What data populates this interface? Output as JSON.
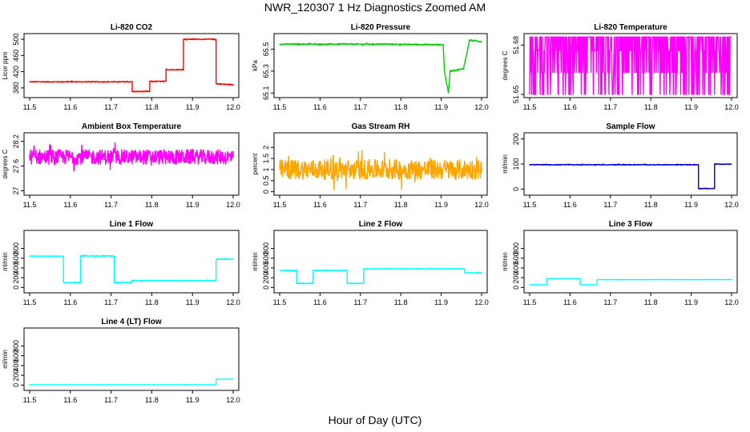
{
  "page": {
    "title": "NWR_120307  1 Hz Diagnostics Zoomed AM",
    "x_axis_title": "Hour of Day (UTC)"
  },
  "chart_data": [
    {
      "id": "li820-co2",
      "type": "line",
      "title": "Li-820 CO2",
      "ylabel": "Licor ppm",
      "color": "#ff0000",
      "xlim": [
        11.5,
        12.0
      ],
      "ylim": [
        362,
        508
      ],
      "xticks": [
        "11.5",
        "11.6",
        "11.7",
        "11.8",
        "11.9",
        "12.0"
      ],
      "yticks": [
        380,
        420,
        460,
        500
      ],
      "series": [
        {
          "name": "CO2",
          "noise": 1.2,
          "x": [
            11.5,
            11.752,
            11.752,
            11.795,
            11.795,
            11.835,
            11.835,
            11.878,
            11.878,
            11.958,
            11.958,
            12.0
          ],
          "y": [
            395,
            395,
            371,
            371,
            396,
            396,
            425,
            425,
            500,
            500,
            390,
            388
          ]
        }
      ]
    },
    {
      "id": "li820-pressure",
      "type": "line",
      "title": "Li-820 Pressure",
      "ylabel": "kPa",
      "color": "#00cc00",
      "xlim": [
        11.5,
        12.0
      ],
      "ylim": [
        65.08,
        65.62
      ],
      "xticks": [
        "11.5",
        "11.6",
        "11.7",
        "11.8",
        "11.9",
        "12.0"
      ],
      "yticks": [
        65.1,
        65.3,
        65.5
      ],
      "series": [
        {
          "name": "Pressure",
          "noise": 0.006,
          "x": [
            11.5,
            11.75,
            11.905,
            11.908,
            11.918,
            11.922,
            11.955,
            11.96,
            11.97,
            12.0
          ],
          "y": [
            65.545,
            65.545,
            65.54,
            65.3,
            65.1,
            65.3,
            65.32,
            65.4,
            65.58,
            65.57
          ]
        }
      ]
    },
    {
      "id": "li820-temperature",
      "type": "line",
      "title": "Li-820 Temperature",
      "ylabel": "degrees C",
      "color": "#ff00ff",
      "xlim": [
        11.5,
        12.0
      ],
      "ylim": [
        51.6495,
        51.6855
      ],
      "xticks": [
        "11.5",
        "11.6",
        "11.7",
        "11.8",
        "11.9",
        "12.0"
      ],
      "yticks": [
        51.65,
        51.68
      ],
      "series": [
        {
          "name": "Temperature",
          "pattern": "quantized-toggle",
          "levels": [
            51.65,
            51.6633,
            51.6766,
            51.6849
          ],
          "x": [
            11.5,
            12.0
          ],
          "y": [
            51.6766,
            51.6766
          ]
        }
      ]
    },
    {
      "id": "ambient-box-temperature",
      "type": "line",
      "title": "Ambient Box Temperature",
      "ylabel": "degrees C",
      "color": "#ff00ff",
      "xlim": [
        11.5,
        12.0
      ],
      "ylim": [
        26.95,
        28.35
      ],
      "xticks": [
        "11.5",
        "11.6",
        "11.7",
        "11.8",
        "11.9",
        "12.0"
      ],
      "yticks": [
        27.0,
        27.6,
        28.2
      ],
      "series": [
        {
          "name": "Box Temp",
          "noise": 0.18,
          "x": [
            11.5,
            12.0
          ],
          "y": [
            27.82,
            27.82
          ]
        }
      ]
    },
    {
      "id": "gas-stream-rh",
      "type": "line",
      "title": "Gas Stream RH",
      "ylabel": "percent",
      "color": "#ffa500",
      "xlim": [
        11.5,
        12.0
      ],
      "ylim": [
        -0.05,
        2.55
      ],
      "xticks": [
        "11.5",
        "11.6",
        "11.7",
        "11.8",
        "11.9",
        "12.0"
      ],
      "yticks": [
        0.0,
        0.5,
        1.0,
        1.5,
        2.0
      ],
      "series": [
        {
          "name": "RH",
          "noise": 0.45,
          "x": [
            11.5,
            12.0
          ],
          "y": [
            1.0,
            1.0
          ]
        }
      ]
    },
    {
      "id": "sample-flow",
      "type": "line",
      "title": "Sample Flow",
      "ylabel": "ml/min",
      "color": "#0000cc",
      "xlim": [
        11.5,
        12.0
      ],
      "ylim": [
        -15,
        215
      ],
      "xticks": [
        "11.5",
        "11.6",
        "11.7",
        "11.8",
        "11.9",
        "12.0"
      ],
      "yticks": [
        0,
        100,
        200
      ],
      "series": [
        {
          "name": "Sample Flow",
          "noise": 1.5,
          "x": [
            11.5,
            11.918,
            11.918,
            11.958,
            11.958,
            12.0
          ],
          "y": [
            97,
            97,
            2,
            2,
            100,
            99
          ]
        }
      ]
    },
    {
      "id": "line1-flow",
      "type": "line",
      "title": "Line 1 Flow",
      "ylabel": "ml/min",
      "color": "#00ffff",
      "xlim": [
        11.5,
        12.0
      ],
      "ylim": [
        -60,
        1120
      ],
      "xticks": [
        "11.5",
        "11.6",
        "11.7",
        "11.8",
        "11.9",
        "12.0"
      ],
      "yticks": [
        0,
        200,
        400,
        600,
        800
      ],
      "series": [
        {
          "name": "Line 1",
          "noise": 10,
          "x": [
            11.5,
            11.583,
            11.583,
            11.625,
            11.625,
            11.708,
            11.708,
            11.75,
            11.75,
            11.958,
            11.958,
            12.0
          ],
          "y": [
            640,
            640,
            100,
            100,
            650,
            640,
            100,
            100,
            140,
            140,
            580,
            580
          ]
        }
      ]
    },
    {
      "id": "line2-flow",
      "type": "line",
      "title": "Line 2 Flow",
      "ylabel": "ml/min",
      "color": "#00ffff",
      "xlim": [
        11.5,
        12.0
      ],
      "ylim": [
        -60,
        1120
      ],
      "xticks": [
        "11.5",
        "11.6",
        "11.7",
        "11.8",
        "11.9",
        "12.0"
      ],
      "yticks": [
        0,
        200,
        400,
        600,
        800
      ],
      "series": [
        {
          "name": "Line 2",
          "noise": 8,
          "x": [
            11.5,
            11.542,
            11.542,
            11.583,
            11.583,
            11.667,
            11.667,
            11.708,
            11.708,
            11.958,
            11.958,
            12.0
          ],
          "y": [
            350,
            350,
            85,
            85,
            350,
            350,
            85,
            85,
            380,
            380,
            300,
            300
          ]
        }
      ]
    },
    {
      "id": "line3-flow",
      "type": "line",
      "title": "Line 3 Flow",
      "ylabel": "ml/min",
      "color": "#00ffff",
      "xlim": [
        11.5,
        12.0
      ],
      "ylim": [
        -60,
        1120
      ],
      "xticks": [
        "11.5",
        "11.6",
        "11.7",
        "11.8",
        "11.9",
        "12.0"
      ],
      "yticks": [
        0,
        200,
        400,
        600,
        800
      ],
      "series": [
        {
          "name": "Line 3",
          "noise": 3,
          "x": [
            11.5,
            11.542,
            11.542,
            11.625,
            11.625,
            11.667,
            11.667,
            12.0
          ],
          "y": [
            55,
            55,
            180,
            180,
            55,
            55,
            160,
            160
          ]
        }
      ]
    },
    {
      "id": "line4-flow",
      "type": "line",
      "title": "Line 4 (LT) Flow",
      "ylabel": "ml/min",
      "color": "#00ffff",
      "xlim": [
        11.5,
        12.0
      ],
      "ylim": [
        -60,
        1120
      ],
      "xticks": [
        "11.5",
        "11.6",
        "11.7",
        "11.8",
        "11.9",
        "12.0"
      ],
      "yticks": [
        0,
        200,
        400,
        600,
        800
      ],
      "series": [
        {
          "name": "Line 4",
          "noise": 2,
          "x": [
            11.5,
            11.958,
            11.958,
            12.0
          ],
          "y": [
            5,
            5,
            120,
            120
          ]
        }
      ]
    }
  ]
}
